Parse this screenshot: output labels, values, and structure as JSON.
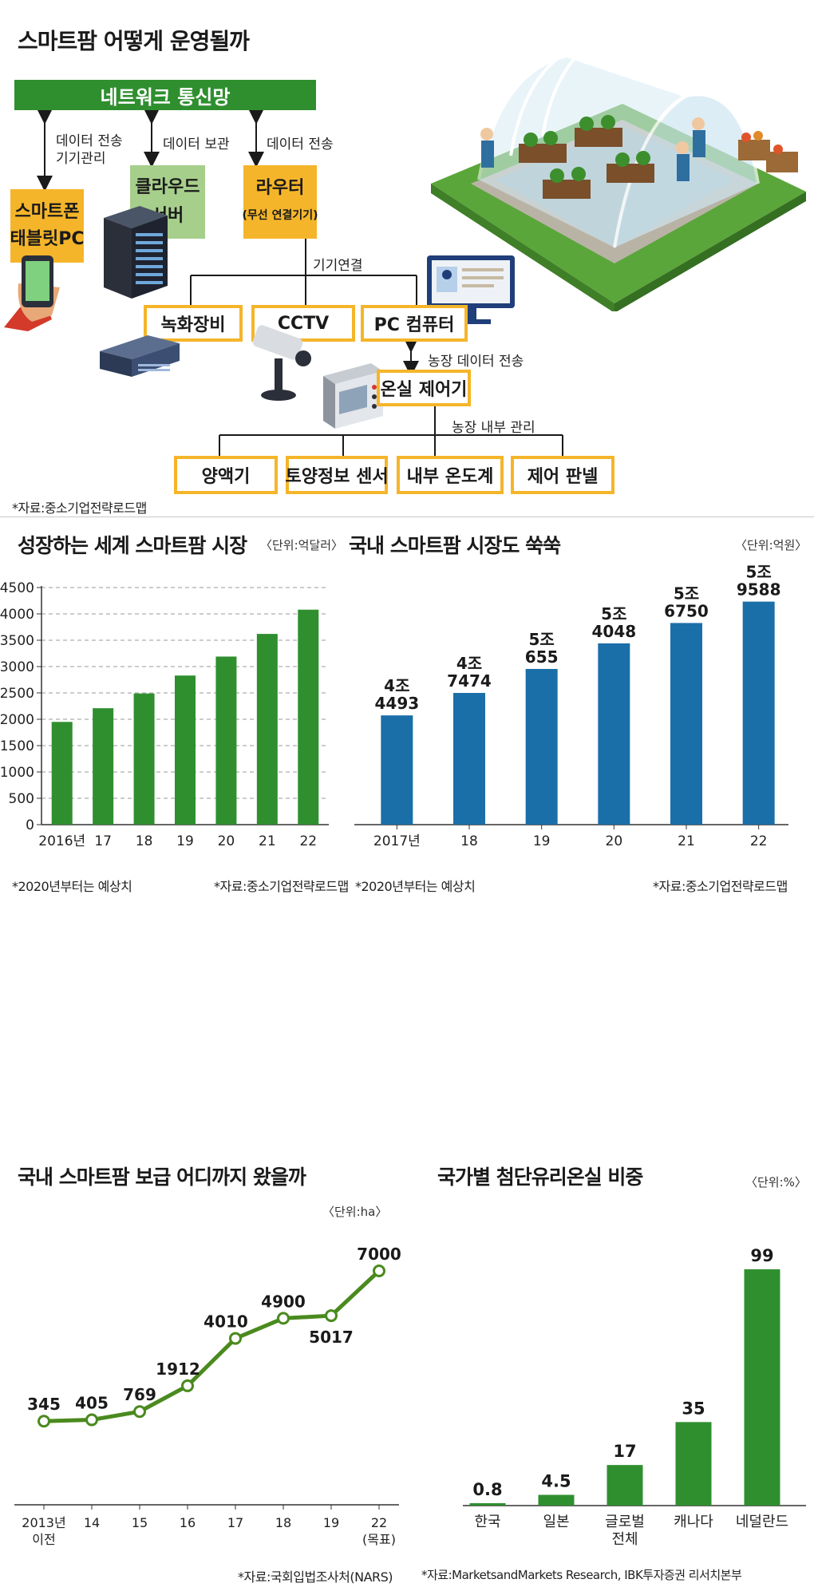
{
  "diagram": {
    "title": "스마트팜 어떻게 운영될까",
    "network": "네트워크 통신망",
    "arrow_labels": {
      "phone_l1": "데이터 전송",
      "phone_l2": "기기관리",
      "cloud": "데이터 보관",
      "router": "데이터 전송",
      "connect": "기기연결",
      "farm_data": "농장 데이터 전송",
      "farm_internal": "농장 내부 관리"
    },
    "smartphone": {
      "l1": "스마트폰",
      "l2": "태블릿PC"
    },
    "cloud": {
      "l1": "클라우드",
      "l2": "서버"
    },
    "router": {
      "l1": "라우터",
      "l2": "(무선 연결기기)"
    },
    "devices": [
      "녹화장비",
      "CCTV",
      "PC 컴퓨터"
    ],
    "controller": "온실 제어기",
    "sensors": [
      "양액기",
      "토양정보 센서",
      "내부 온도계",
      "제어 판넬"
    ],
    "source": "*자료:중소기업전략로드맵",
    "icons": [
      "greenhouse-illustration",
      "server-rack-icon",
      "smartphone-hand-icon",
      "monitor-icon",
      "recorder-icon",
      "cctv-camera-icon",
      "controller-panel-icon"
    ]
  },
  "global_chart": {
    "title": "성장하는 세계 스마트팜 시장",
    "unit": "〈단위:억달러〉",
    "note": "*2020년부터는 예상치",
    "source": "*자료:중소기업전략로드맵"
  },
  "domestic_chart": {
    "title": "국내 스마트팜 시장도 쑥쑥",
    "unit": "〈단위:억원〉",
    "note": "*2020년부터는 예상치",
    "source": "*자료:중소기업전략로드맵"
  },
  "spread_chart": {
    "title": "국내 스마트팜 보급 어디까지 왔을까",
    "unit": "〈단위:ha〉",
    "source": "*자료:국회입법조사처(NARS)"
  },
  "country_chart": {
    "title": "국가별 첨단유리온실 비중",
    "unit": "〈단위:%〉",
    "source": "*자료:MarketsandMarkets Research, IBK투자증권 리서치본부"
  },
  "colors": {
    "green": "#2f8f2f",
    "blue": "#1a6fa8",
    "line": "#4a8a1e",
    "orange": "#f5b52a",
    "light_green": "#a7cf8c"
  },
  "chart_data": [
    {
      "type": "bar",
      "title": "성장하는 세계 스마트팜 시장",
      "categories": [
        "2016년",
        "17",
        "18",
        "19",
        "20",
        "21",
        "22"
      ],
      "values": [
        1950,
        2210,
        2490,
        2830,
        3190,
        3620,
        4080
      ],
      "ylim": [
        0,
        4500
      ],
      "yticks": [
        0,
        500,
        1000,
        1500,
        2000,
        2500,
        3000,
        3500,
        4000,
        4500
      ],
      "grid": true,
      "color": "#2f8f2f"
    },
    {
      "type": "bar",
      "title": "국내 스마트팜 시장도 쑥쑥",
      "categories": [
        "2017년",
        "18",
        "19",
        "20",
        "21",
        "22"
      ],
      "values": [
        44493,
        47474,
        50655,
        54048,
        56750,
        59588
      ],
      "data_labels": [
        [
          "4조",
          "4493"
        ],
        [
          "4조",
          "7474"
        ],
        [
          "5조",
          "655"
        ],
        [
          "5조",
          "4048"
        ],
        [
          "5조",
          "6750"
        ],
        [
          "5조",
          "9588"
        ]
      ],
      "ylim": [
        30000,
        60500
      ],
      "color": "#1a6fa8"
    },
    {
      "type": "line",
      "title": "국내 스마트팜 보급 어디까지 왔을까",
      "categories": [
        [
          "2013년",
          "이전"
        ],
        [
          "14"
        ],
        [
          "15"
        ],
        [
          "16"
        ],
        [
          "17"
        ],
        [
          "18"
        ],
        [
          "19"
        ],
        [
          "22",
          "(목표)"
        ]
      ],
      "values": [
        345,
        405,
        769,
        1912,
        4010,
        4900,
        5017,
        7000
      ],
      "data_labels": [
        "345",
        "405",
        "769",
        "1912",
        "4010",
        "4900",
        "5017",
        "7000"
      ],
      "ylim": [
        0,
        7000
      ],
      "color": "#4a8a1e"
    },
    {
      "type": "bar",
      "title": "국가별 첨단유리온실 비중",
      "categories": [
        [
          "한국"
        ],
        [
          "일본"
        ],
        [
          "글로벌",
          "전체"
        ],
        [
          "캐나다"
        ],
        [
          "네덜란드"
        ]
      ],
      "values": [
        0.8,
        4.5,
        17,
        35,
        99
      ],
      "data_labels": [
        "0.8",
        "4.5",
        "17",
        "35",
        "99"
      ],
      "ylim": [
        0,
        99
      ],
      "color": "#2f8f2f"
    }
  ]
}
